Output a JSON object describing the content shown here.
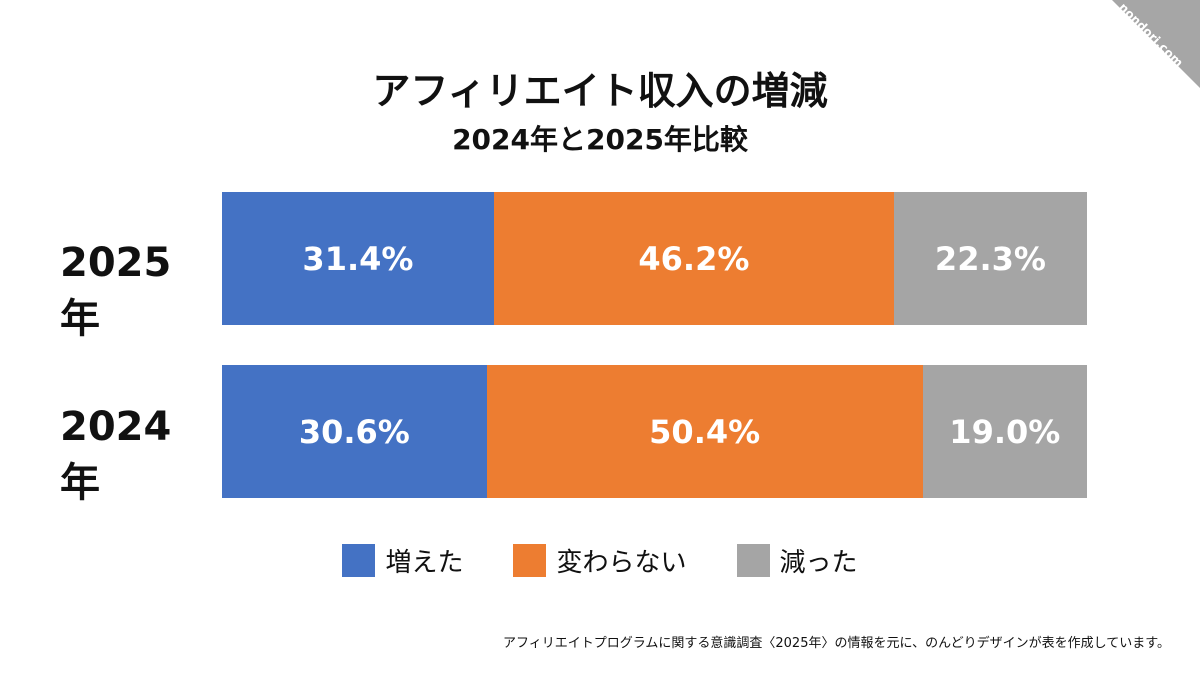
{
  "watermark": "nondori.com",
  "chart_data": {
    "type": "bar",
    "stacked": true,
    "orientation": "horizontal",
    "title": "アフィリエイト収入の増減",
    "subtitle": "2024年と2025年比較",
    "categories": [
      "2025年",
      "2024年"
    ],
    "series": [
      {
        "name": "増えた",
        "values": [
          31.4,
          30.6
        ],
        "labels": [
          "31.4%",
          "30.6%"
        ],
        "color": "#4472c4"
      },
      {
        "name": "変わらない",
        "values": [
          46.2,
          50.4
        ],
        "labels": [
          "46.2%",
          "50.4%"
        ],
        "color": "#ed7d31"
      },
      {
        "name": "減った",
        "values": [
          22.3,
          19.0
        ],
        "labels": [
          "22.3%",
          "19.0%"
        ],
        "color": "#a5a5a5"
      }
    ],
    "legend": "bottom"
  },
  "footnote": "アフィリエイトプログラムに関する意識調査〈2025年〉の情報を元に、のんどりデザインが表を作成しています。"
}
